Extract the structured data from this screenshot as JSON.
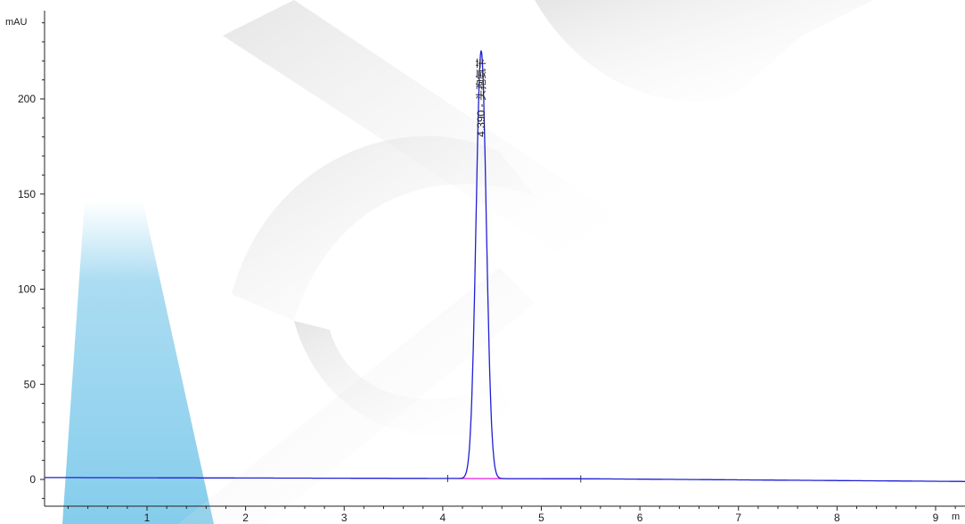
{
  "chart_data": {
    "type": "line",
    "ylabel": "mAU",
    "xlabel": "",
    "xlim": [
      0.1,
      9.25
    ],
    "ylim": [
      -10,
      245
    ],
    "x_ticks": [
      1,
      2,
      3,
      4,
      5,
      6,
      7,
      8,
      9
    ],
    "x_tick_labels": [
      "1",
      "2",
      "3",
      "4",
      "5",
      "6",
      "7",
      "8",
      "9"
    ],
    "x_unit_partial": "m",
    "y_ticks": [
      0,
      50,
      100,
      150,
      200
    ],
    "y_tick_labels": [
      "0",
      "50",
      "100",
      "150",
      "200"
    ],
    "peaks": [
      {
        "retention_time": 4.39,
        "retention_label": "4.390",
        "name": "头孢氨苄",
        "height": 225
      }
    ],
    "integration_marks": [
      4.05,
      5.4
    ],
    "colors": {
      "signal": "#1f1fd6",
      "baseline": "#e000e0",
      "watermark_blue": "#6fc4e8",
      "watermark_gray": "#c8c8c8"
    }
  }
}
